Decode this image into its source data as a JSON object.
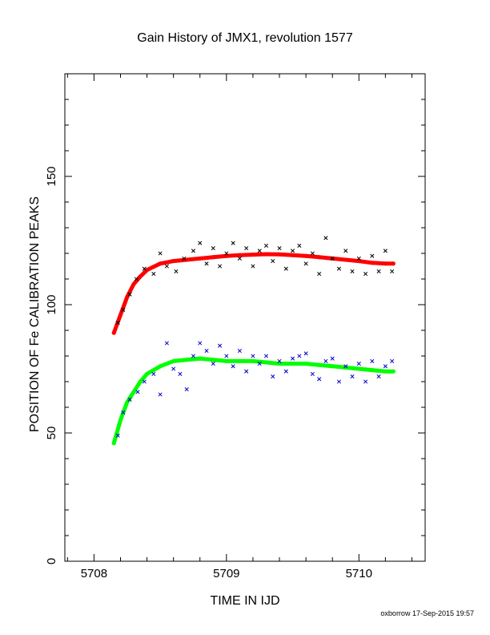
{
  "chart_data": {
    "type": "scatter",
    "title": "Gain History of JMX1, revolution 1577",
    "xlabel": "TIME IN IJD",
    "ylabel": "POSITION OF Fe CALIBRATION PEAKS",
    "xlim": [
      5707.78,
      5710.5
    ],
    "ylim": [
      0,
      190
    ],
    "xticks": [
      5708,
      5709,
      5710
    ],
    "yticks": [
      0,
      50,
      100,
      150
    ],
    "grid": false,
    "series": [
      {
        "color": "#ff0000",
        "marker": "thick-line",
        "points": [
          [
            5708.15,
            89
          ],
          [
            5708.2,
            96
          ],
          [
            5708.25,
            103
          ],
          [
            5708.3,
            108
          ],
          [
            5708.35,
            111
          ],
          [
            5708.4,
            113.5
          ],
          [
            5708.5,
            116
          ],
          [
            5708.6,
            117
          ],
          [
            5708.7,
            117.5
          ],
          [
            5708.8,
            118
          ],
          [
            5708.9,
            118.5
          ],
          [
            5709.0,
            119
          ],
          [
            5709.1,
            119.3
          ],
          [
            5709.2,
            119.5
          ],
          [
            5709.3,
            119.7
          ],
          [
            5709.4,
            119.6
          ],
          [
            5709.5,
            119.3
          ],
          [
            5709.6,
            119
          ],
          [
            5709.7,
            118.5
          ],
          [
            5709.8,
            118
          ],
          [
            5709.9,
            117.5
          ],
          [
            5710.0,
            117
          ],
          [
            5710.1,
            116.3
          ],
          [
            5710.2,
            116
          ],
          [
            5710.26,
            116
          ]
        ]
      },
      {
        "color": "#000000",
        "marker": "x",
        "points": [
          [
            5708.18,
            93
          ],
          [
            5708.22,
            98
          ],
          [
            5708.27,
            104
          ],
          [
            5708.32,
            110
          ],
          [
            5708.38,
            114
          ],
          [
            5708.45,
            112
          ],
          [
            5708.5,
            120
          ],
          [
            5708.55,
            115
          ],
          [
            5708.62,
            113
          ],
          [
            5708.68,
            118
          ],
          [
            5708.75,
            121
          ],
          [
            5708.8,
            124
          ],
          [
            5708.85,
            116
          ],
          [
            5708.9,
            122
          ],
          [
            5708.95,
            115
          ],
          [
            5709.0,
            120
          ],
          [
            5709.05,
            124
          ],
          [
            5709.1,
            118
          ],
          [
            5709.15,
            122
          ],
          [
            5709.2,
            115
          ],
          [
            5709.25,
            121
          ],
          [
            5709.3,
            123
          ],
          [
            5709.35,
            117
          ],
          [
            5709.4,
            122
          ],
          [
            5709.45,
            114
          ],
          [
            5709.5,
            121
          ],
          [
            5709.55,
            123
          ],
          [
            5709.6,
            116
          ],
          [
            5709.65,
            120
          ],
          [
            5709.7,
            112
          ],
          [
            5709.75,
            126
          ],
          [
            5709.8,
            118
          ],
          [
            5709.85,
            114
          ],
          [
            5709.9,
            121
          ],
          [
            5709.95,
            113
          ],
          [
            5710.0,
            118
          ],
          [
            5710.05,
            112
          ],
          [
            5710.1,
            119
          ],
          [
            5710.15,
            113
          ],
          [
            5710.2,
            121
          ],
          [
            5710.25,
            113
          ]
        ]
      },
      {
        "color": "#00ff00",
        "marker": "thick-line",
        "points": [
          [
            5708.15,
            46
          ],
          [
            5708.2,
            55
          ],
          [
            5708.25,
            62
          ],
          [
            5708.3,
            66
          ],
          [
            5708.35,
            70
          ],
          [
            5708.4,
            73
          ],
          [
            5708.5,
            76
          ],
          [
            5708.6,
            78
          ],
          [
            5708.7,
            78.5
          ],
          [
            5708.8,
            79
          ],
          [
            5708.9,
            78.5
          ],
          [
            5709.0,
            78
          ],
          [
            5709.1,
            78
          ],
          [
            5709.2,
            78
          ],
          [
            5709.3,
            77.5
          ],
          [
            5709.4,
            77
          ],
          [
            5709.5,
            77
          ],
          [
            5709.6,
            77
          ],
          [
            5709.7,
            76.5
          ],
          [
            5709.8,
            76
          ],
          [
            5709.9,
            75.5
          ],
          [
            5710.0,
            75
          ],
          [
            5710.1,
            74.5
          ],
          [
            5710.2,
            74
          ],
          [
            5710.26,
            74
          ]
        ]
      },
      {
        "color": "#0000cc",
        "marker": "x",
        "points": [
          [
            5708.18,
            49
          ],
          [
            5708.22,
            58
          ],
          [
            5708.27,
            63
          ],
          [
            5708.33,
            66
          ],
          [
            5708.38,
            70
          ],
          [
            5708.45,
            73
          ],
          [
            5708.5,
            65
          ],
          [
            5708.55,
            85
          ],
          [
            5708.6,
            75
          ],
          [
            5708.65,
            73
          ],
          [
            5708.7,
            67
          ],
          [
            5708.75,
            80
          ],
          [
            5708.8,
            85
          ],
          [
            5708.85,
            82
          ],
          [
            5708.9,
            77
          ],
          [
            5708.95,
            84
          ],
          [
            5709.0,
            80
          ],
          [
            5709.05,
            76
          ],
          [
            5709.1,
            82
          ],
          [
            5709.15,
            74
          ],
          [
            5709.2,
            80
          ],
          [
            5709.25,
            77
          ],
          [
            5709.3,
            80
          ],
          [
            5709.35,
            72
          ],
          [
            5709.4,
            78
          ],
          [
            5709.45,
            74
          ],
          [
            5709.5,
            79
          ],
          [
            5709.55,
            80
          ],
          [
            5709.6,
            81
          ],
          [
            5709.65,
            73
          ],
          [
            5709.7,
            71
          ],
          [
            5709.75,
            78
          ],
          [
            5709.8,
            79
          ],
          [
            5709.85,
            70
          ],
          [
            5709.9,
            76
          ],
          [
            5709.95,
            72
          ],
          [
            5710.0,
            77
          ],
          [
            5710.05,
            70
          ],
          [
            5710.1,
            78
          ],
          [
            5710.15,
            72
          ],
          [
            5710.2,
            76
          ],
          [
            5710.25,
            78
          ]
        ]
      }
    ]
  },
  "footer": "oxborrow 17-Sep-2015 19:57"
}
